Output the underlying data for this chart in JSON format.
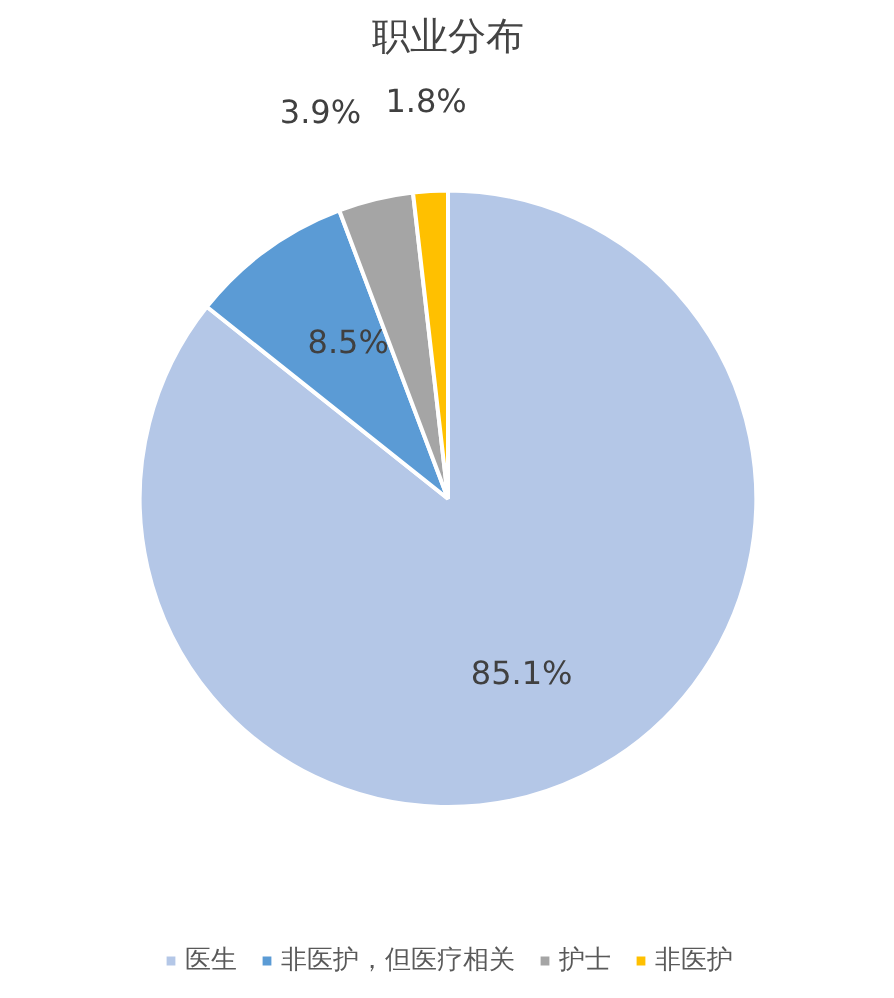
{
  "chart_data": {
    "type": "pie",
    "title": "职业分布",
    "categories": [
      "医生",
      "非医护，但医疗相关",
      "护士",
      "非医护"
    ],
    "values": [
      85.1,
      8.5,
      3.9,
      1.8
    ],
    "colors": [
      "#b4c7e7",
      "#5b9bd5",
      "#a5a5a5",
      "#ffc000"
    ],
    "value_labels": [
      "85.1%",
      "8.5%",
      "3.9%",
      "1.8%"
    ],
    "legend": "bottom"
  }
}
